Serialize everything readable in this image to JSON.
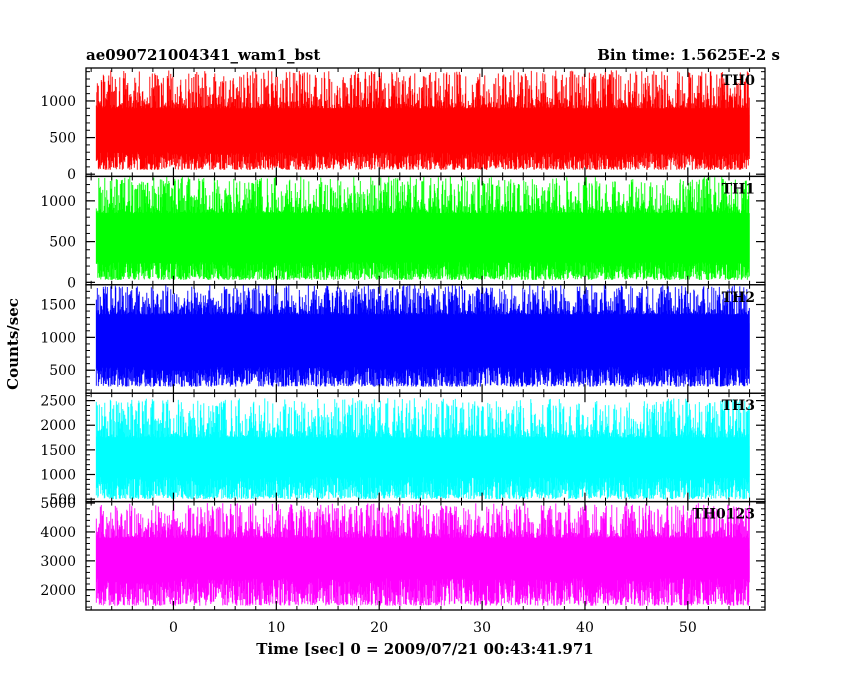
{
  "chart_data": {
    "type": "line",
    "title_left": "ae090721004341_wam1_bst",
    "title_right": "Bin time: 1.5625E-2 s",
    "xlabel": "Time [sec] 0 = 2009/07/21 00:43:41.971",
    "ylabel": "Counts/sec",
    "xlim": [
      -8.5,
      57.5
    ],
    "x_range_data": [
      -7.5,
      56.0
    ],
    "x_ticks": [
      0,
      10,
      20,
      30,
      40,
      50
    ],
    "x_tick_labels": [
      "0",
      "10",
      "20",
      "30",
      "40",
      "50"
    ],
    "panels": [
      {
        "label": "TH0",
        "color": "#ff0000",
        "ylim": [
          -30,
          1450
        ],
        "y_ticks": [
          0,
          500,
          1000
        ],
        "y_tick_labels": [
          "0",
          "500",
          "1000"
        ],
        "mean": 650,
        "low": [
          60,
          300
        ],
        "high": [
          900,
          1420
        ]
      },
      {
        "label": "TH1",
        "color": "#00ff00",
        "ylim": [
          -30,
          1300
        ],
        "y_ticks": [
          0,
          500,
          1000
        ],
        "y_tick_labels": [
          "0",
          "500",
          "1000"
        ],
        "mean": 600,
        "low": [
          30,
          250
        ],
        "high": [
          850,
          1300
        ]
      },
      {
        "label": "TH2",
        "color": "#0000ff",
        "ylim": [
          150,
          1800
        ],
        "y_ticks": [
          500,
          1000,
          1500
        ],
        "y_tick_labels": [
          "500",
          "1000",
          "1500"
        ],
        "mean": 1000,
        "low": [
          250,
          550
        ],
        "high": [
          1350,
          1800
        ]
      },
      {
        "label": "TH3",
        "color": "#00ffff",
        "ylim": [
          450,
          2650
        ],
        "y_ticks": [
          500,
          1000,
          1500,
          2000,
          2500
        ],
        "y_tick_labels": [
          "500",
          "1000",
          "1500",
          "2000",
          "2500"
        ],
        "mean": 1400,
        "low": [
          500,
          950
        ],
        "high": [
          1750,
          2550
        ]
      },
      {
        "label": "TH0123",
        "color": "#ff00ff",
        "ylim": [
          1300,
          5050
        ],
        "y_ticks": [
          2000,
          3000,
          4000,
          5000
        ],
        "y_tick_labels": [
          "2000",
          "3000",
          "4000",
          "5000"
        ],
        "mean": 3100,
        "low": [
          1450,
          2400
        ],
        "high": [
          3800,
          5000
        ]
      }
    ]
  }
}
